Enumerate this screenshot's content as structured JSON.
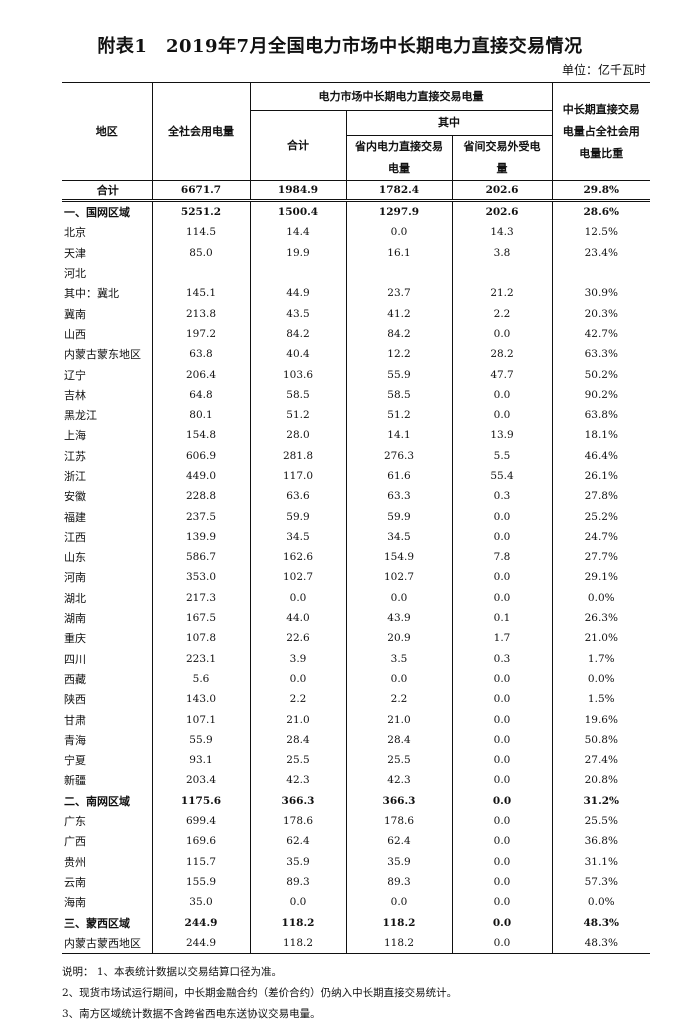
{
  "title": "附表1　2019年7月全国电力市场中长期电力直接交易情况",
  "unit": "单位：亿千瓦时",
  "headers": {
    "region": "地区",
    "total_consumption": "全社会用电量",
    "trade_group": "电力市场中长期电力直接交易电量",
    "subtotal": "合计",
    "of_which": "其中",
    "intra_province": "省内电力直接交易电量",
    "inter_province": "省间交易外受电量",
    "ratio": "中长期直接交易电量占全社会用电量比重"
  },
  "total_row": [
    "合计",
    "6671.7",
    "1984.9",
    "1782.4",
    "202.6",
    "29.8%"
  ],
  "rows": [
    {
      "bold": true,
      "cells": [
        "一、国网区域",
        "5251.2",
        "1500.4",
        "1297.9",
        "202.6",
        "28.6%"
      ]
    },
    {
      "cells": [
        "北京",
        "114.5",
        "14.4",
        "0.0",
        "14.3",
        "12.5%"
      ]
    },
    {
      "cells": [
        "天津",
        "85.0",
        "19.9",
        "16.1",
        "3.8",
        "23.4%"
      ]
    },
    {
      "cells": [
        "河北",
        "",
        "",
        "",
        "",
        ""
      ]
    },
    {
      "cells": [
        "其中：冀北",
        "145.1",
        "44.9",
        "23.7",
        "21.2",
        "30.9%"
      ]
    },
    {
      "cells": [
        "冀南",
        "213.8",
        "43.5",
        "41.2",
        "2.2",
        "20.3%"
      ]
    },
    {
      "cells": [
        "山西",
        "197.2",
        "84.2",
        "84.2",
        "0.0",
        "42.7%"
      ]
    },
    {
      "cells": [
        "内蒙古蒙东地区",
        "63.8",
        "40.4",
        "12.2",
        "28.2",
        "63.3%"
      ]
    },
    {
      "cells": [
        "辽宁",
        "206.4",
        "103.6",
        "55.9",
        "47.7",
        "50.2%"
      ]
    },
    {
      "cells": [
        "吉林",
        "64.8",
        "58.5",
        "58.5",
        "0.0",
        "90.2%"
      ]
    },
    {
      "cells": [
        "黑龙江",
        "80.1",
        "51.2",
        "51.2",
        "0.0",
        "63.8%"
      ]
    },
    {
      "cells": [
        "上海",
        "154.8",
        "28.0",
        "14.1",
        "13.9",
        "18.1%"
      ]
    },
    {
      "cells": [
        "江苏",
        "606.9",
        "281.8",
        "276.3",
        "5.5",
        "46.4%"
      ]
    },
    {
      "cells": [
        "浙江",
        "449.0",
        "117.0",
        "61.6",
        "55.4",
        "26.1%"
      ]
    },
    {
      "cells": [
        "安徽",
        "228.8",
        "63.6",
        "63.3",
        "0.3",
        "27.8%"
      ]
    },
    {
      "cells": [
        "福建",
        "237.5",
        "59.9",
        "59.9",
        "0.0",
        "25.2%"
      ]
    },
    {
      "cells": [
        "江西",
        "139.9",
        "34.5",
        "34.5",
        "0.0",
        "24.7%"
      ]
    },
    {
      "cells": [
        "山东",
        "586.7",
        "162.6",
        "154.9",
        "7.8",
        "27.7%"
      ]
    },
    {
      "cells": [
        "河南",
        "353.0",
        "102.7",
        "102.7",
        "0.0",
        "29.1%"
      ]
    },
    {
      "cells": [
        "湖北",
        "217.3",
        "0.0",
        "0.0",
        "0.0",
        "0.0%"
      ]
    },
    {
      "cells": [
        "湖南",
        "167.5",
        "44.0",
        "43.9",
        "0.1",
        "26.3%"
      ]
    },
    {
      "cells": [
        "重庆",
        "107.8",
        "22.6",
        "20.9",
        "1.7",
        "21.0%"
      ]
    },
    {
      "cells": [
        "四川",
        "223.1",
        "3.9",
        "3.5",
        "0.3",
        "1.7%"
      ]
    },
    {
      "cells": [
        "西藏",
        "5.6",
        "0.0",
        "0.0",
        "0.0",
        "0.0%"
      ]
    },
    {
      "cells": [
        "陕西",
        "143.0",
        "2.2",
        "2.2",
        "0.0",
        "1.5%"
      ]
    },
    {
      "cells": [
        "甘肃",
        "107.1",
        "21.0",
        "21.0",
        "0.0",
        "19.6%"
      ]
    },
    {
      "cells": [
        "青海",
        "55.9",
        "28.4",
        "28.4",
        "0.0",
        "50.8%"
      ]
    },
    {
      "cells": [
        "宁夏",
        "93.1",
        "25.5",
        "25.5",
        "0.0",
        "27.4%"
      ]
    },
    {
      "cells": [
        "新疆",
        "203.4",
        "42.3",
        "42.3",
        "0.0",
        "20.8%"
      ]
    },
    {
      "bold": true,
      "cells": [
        "二、南网区域",
        "1175.6",
        "366.3",
        "366.3",
        "0.0",
        "31.2%"
      ]
    },
    {
      "cells": [
        "广东",
        "699.4",
        "178.6",
        "178.6",
        "0.0",
        "25.5%"
      ]
    },
    {
      "cells": [
        "广西",
        "169.6",
        "62.4",
        "62.4",
        "0.0",
        "36.8%"
      ]
    },
    {
      "cells": [
        "贵州",
        "115.7",
        "35.9",
        "35.9",
        "0.0",
        "31.1%"
      ]
    },
    {
      "cells": [
        "云南",
        "155.9",
        "89.3",
        "89.3",
        "0.0",
        "57.3%"
      ]
    },
    {
      "cells": [
        "海南",
        "35.0",
        "0.0",
        "0.0",
        "0.0",
        "0.0%"
      ]
    },
    {
      "bold": true,
      "cells": [
        "三、蒙西区域",
        "244.9",
        "118.2",
        "118.2",
        "0.0",
        "48.3%"
      ]
    },
    {
      "cells": [
        "内蒙古蒙西地区",
        "244.9",
        "118.2",
        "118.2",
        "0.0",
        "48.3%"
      ]
    }
  ],
  "notes": [
    "说明：  1、本表统计数据以交易结算口径为准。",
    "2、现货市场试运行期间，中长期金融合约（差价合约）仍纳入中长期直接交易统计。",
    "3、南方区域统计数据不含跨省西电东送协议交易电量。"
  ]
}
